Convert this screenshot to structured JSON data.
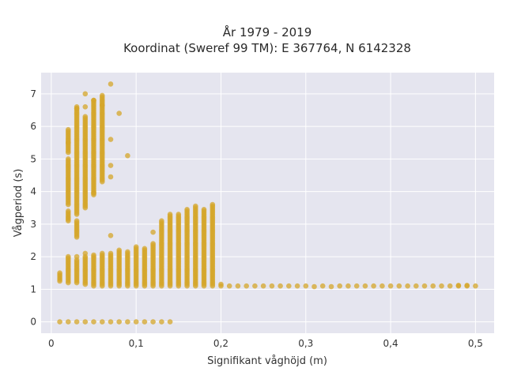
{
  "chart_data": {
    "type": "scatter",
    "title": "År 1979 - 2019",
    "subtitle": "Koordinat (Sweref 99 TM): E 367764, N 6142328",
    "xlabel": "Signifikant våghöjd (m)",
    "ylabel": "Vågperiod (s)",
    "xlim": [
      -0.012,
      0.522
    ],
    "ylim": [
      -0.35,
      7.65
    ],
    "x_ticks": [
      0,
      0.1,
      0.2,
      0.3,
      0.4,
      0.5
    ],
    "x_tick_labels": [
      "0",
      "0,1",
      "0,2",
      "0,3",
      "0,4",
      "0,5"
    ],
    "y_ticks": [
      0,
      1,
      2,
      3,
      4,
      5,
      6,
      7
    ],
    "y_tick_labels": [
      "0",
      "1",
      "2",
      "3",
      "4",
      "5",
      "6",
      "7"
    ],
    "grid": true,
    "legend": "none",
    "marker_color": "#d4a52a",
    "background_color": "#e5e5ef",
    "columns": [
      {
        "x": 0.01,
        "ranges": [
          [
            0,
            0
          ],
          [
            1.25,
            1.5
          ]
        ]
      },
      {
        "x": 0.02,
        "ranges": [
          [
            0,
            0
          ],
          [
            1.2,
            2.0
          ],
          [
            3.1,
            3.4
          ],
          [
            3.6,
            5.0
          ],
          [
            5.2,
            5.9
          ]
        ]
      },
      {
        "x": 0.03,
        "ranges": [
          [
            0,
            0
          ],
          [
            1.2,
            1.9
          ],
          [
            2.6,
            3.1
          ],
          [
            3.3,
            6.6
          ]
        ]
      },
      {
        "x": 0.04,
        "ranges": [
          [
            0,
            0
          ],
          [
            1.15,
            2.0
          ],
          [
            3.5,
            6.3
          ]
        ]
      },
      {
        "x": 0.05,
        "ranges": [
          [
            0,
            0
          ],
          [
            1.1,
            2.05
          ],
          [
            3.9,
            6.8
          ]
        ]
      },
      {
        "x": 0.06,
        "ranges": [
          [
            0,
            0
          ],
          [
            1.1,
            2.1
          ],
          [
            4.3,
            6.9
          ]
        ]
      },
      {
        "x": 0.07,
        "ranges": [
          [
            0,
            0
          ],
          [
            1.1,
            2.1
          ]
        ]
      },
      {
        "x": 0.08,
        "ranges": [
          [
            0,
            0
          ],
          [
            1.1,
            2.2
          ]
        ]
      },
      {
        "x": 0.09,
        "ranges": [
          [
            0,
            0
          ],
          [
            1.1,
            2.15
          ]
        ]
      },
      {
        "x": 0.1,
        "ranges": [
          [
            0,
            0
          ],
          [
            1.1,
            2.3
          ]
        ]
      },
      {
        "x": 0.11,
        "ranges": [
          [
            0,
            0
          ],
          [
            1.1,
            2.25
          ]
        ]
      },
      {
        "x": 0.12,
        "ranges": [
          [
            0,
            0
          ],
          [
            1.1,
            2.4
          ]
        ]
      },
      {
        "x": 0.13,
        "ranges": [
          [
            0,
            0
          ],
          [
            1.1,
            3.1
          ]
        ]
      },
      {
        "x": 0.14,
        "ranges": [
          [
            0,
            0
          ],
          [
            1.1,
            3.3
          ]
        ]
      },
      {
        "x": 0.15,
        "ranges": [
          [
            1.1,
            3.3
          ]
        ]
      },
      {
        "x": 0.16,
        "ranges": [
          [
            1.1,
            3.45
          ]
        ]
      },
      {
        "x": 0.17,
        "ranges": [
          [
            1.1,
            3.55
          ]
        ]
      },
      {
        "x": 0.18,
        "ranges": [
          [
            1.1,
            3.45
          ]
        ]
      },
      {
        "x": 0.19,
        "ranges": [
          [
            1.1,
            3.6
          ]
        ]
      },
      {
        "x": 0.2,
        "ranges": [
          [
            1.1,
            1.15
          ]
        ]
      },
      {
        "x": 0.21,
        "ranges": [
          [
            1.1,
            1.1
          ]
        ]
      },
      {
        "x": 0.22,
        "ranges": [
          [
            1.1,
            1.1
          ]
        ]
      },
      {
        "x": 0.23,
        "ranges": [
          [
            1.1,
            1.1
          ]
        ]
      },
      {
        "x": 0.24,
        "ranges": [
          [
            1.1,
            1.1
          ]
        ]
      },
      {
        "x": 0.25,
        "ranges": [
          [
            1.1,
            1.1
          ]
        ]
      },
      {
        "x": 0.26,
        "ranges": [
          [
            1.1,
            1.1
          ]
        ]
      },
      {
        "x": 0.27,
        "ranges": [
          [
            1.1,
            1.1
          ]
        ]
      },
      {
        "x": 0.28,
        "ranges": [
          [
            1.1,
            1.1
          ]
        ]
      },
      {
        "x": 0.29,
        "ranges": [
          [
            1.1,
            1.1
          ]
        ]
      },
      {
        "x": 0.3,
        "ranges": [
          [
            1.1,
            1.1
          ]
        ]
      },
      {
        "x": 0.31,
        "ranges": [
          [
            1.08,
            1.08
          ]
        ]
      },
      {
        "x": 0.32,
        "ranges": [
          [
            1.1,
            1.1
          ]
        ]
      },
      {
        "x": 0.33,
        "ranges": [
          [
            1.08,
            1.08
          ]
        ]
      },
      {
        "x": 0.34,
        "ranges": [
          [
            1.1,
            1.1
          ]
        ]
      },
      {
        "x": 0.35,
        "ranges": [
          [
            1.1,
            1.1
          ]
        ]
      },
      {
        "x": 0.36,
        "ranges": [
          [
            1.1,
            1.1
          ]
        ]
      },
      {
        "x": 0.37,
        "ranges": [
          [
            1.1,
            1.1
          ]
        ]
      },
      {
        "x": 0.38,
        "ranges": [
          [
            1.1,
            1.1
          ]
        ]
      },
      {
        "x": 0.39,
        "ranges": [
          [
            1.1,
            1.1
          ]
        ]
      },
      {
        "x": 0.4,
        "ranges": [
          [
            1.1,
            1.1
          ]
        ]
      },
      {
        "x": 0.41,
        "ranges": [
          [
            1.1,
            1.1
          ]
        ]
      },
      {
        "x": 0.42,
        "ranges": [
          [
            1.1,
            1.1
          ]
        ]
      },
      {
        "x": 0.43,
        "ranges": [
          [
            1.1,
            1.1
          ]
        ]
      },
      {
        "x": 0.44,
        "ranges": [
          [
            1.1,
            1.1
          ]
        ]
      },
      {
        "x": 0.45,
        "ranges": [
          [
            1.1,
            1.1
          ]
        ]
      },
      {
        "x": 0.46,
        "ranges": [
          [
            1.1,
            1.1
          ]
        ]
      },
      {
        "x": 0.47,
        "ranges": [
          [
            1.1,
            1.1
          ]
        ]
      },
      {
        "x": 0.48,
        "ranges": [
          [
            1.1,
            1.12
          ]
        ]
      },
      {
        "x": 0.49,
        "ranges": [
          [
            1.1,
            1.12
          ]
        ]
      },
      {
        "x": 0.5,
        "ranges": [
          [
            1.1,
            1.1
          ]
        ]
      }
    ],
    "outliers": [
      [
        0.04,
        7.0
      ],
      [
        0.07,
        7.3
      ],
      [
        0.05,
        6.8
      ],
      [
        0.06,
        6.95
      ],
      [
        0.08,
        6.4
      ],
      [
        0.09,
        5.1
      ],
      [
        0.07,
        5.6
      ],
      [
        0.07,
        4.8
      ],
      [
        0.07,
        4.45
      ],
      [
        0.03,
        6.55
      ],
      [
        0.04,
        6.6
      ],
      [
        0.06,
        6.65
      ],
      [
        0.07,
        2.65
      ],
      [
        0.12,
        2.75
      ],
      [
        0.05,
        3.95
      ],
      [
        0.02,
        5.5
      ],
      [
        0.04,
        2.1
      ],
      [
        0.03,
        2.0
      ]
    ]
  }
}
